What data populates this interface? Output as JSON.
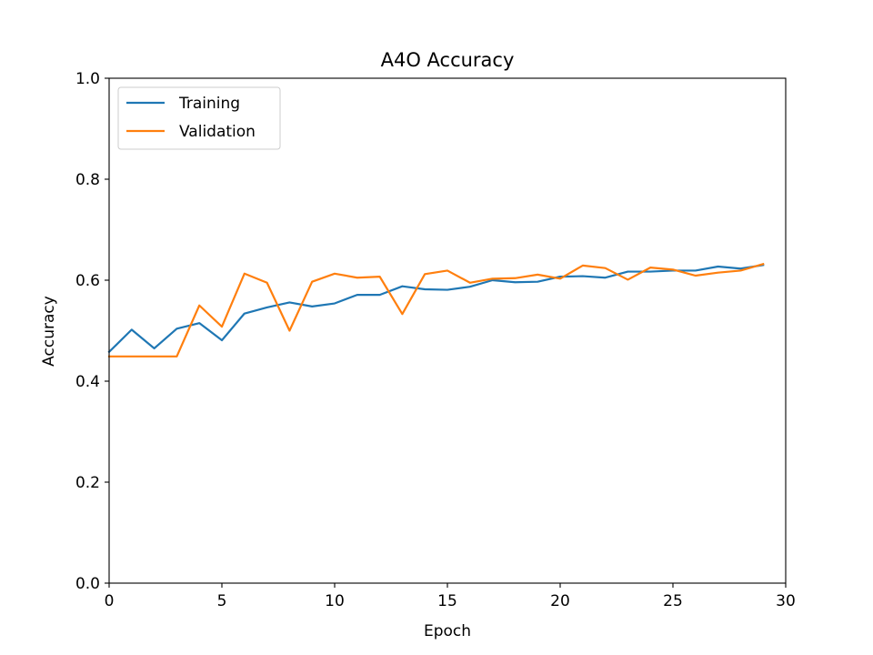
{
  "chart_data": {
    "type": "line",
    "title": "A4O Accuracy",
    "xlabel": "Epoch",
    "ylabel": "Accuracy",
    "xlim": [
      0,
      30
    ],
    "ylim": [
      0,
      1.0
    ],
    "xticks": [
      0,
      5,
      10,
      15,
      20,
      25,
      30
    ],
    "xtick_labels": [
      "0",
      "5",
      "10",
      "15",
      "20",
      "25",
      "30"
    ],
    "yticks": [
      0,
      0.2,
      0.4,
      0.6,
      0.8,
      1.0
    ],
    "ytick_labels": [
      "0.0",
      "0.2",
      "0.4",
      "0.6",
      "0.8",
      "1.0"
    ],
    "grid": false,
    "legend_position": "upper-left",
    "x": [
      0,
      1,
      2,
      3,
      4,
      5,
      6,
      7,
      8,
      9,
      10,
      11,
      12,
      13,
      14,
      15,
      16,
      17,
      18,
      19,
      20,
      21,
      22,
      23,
      24,
      25,
      26,
      27,
      28,
      29
    ],
    "series": [
      {
        "name": "Training",
        "color": "#1f77b4",
        "values": [
          0.458,
          0.502,
          0.465,
          0.504,
          0.515,
          0.481,
          0.534,
          0.546,
          0.556,
          0.548,
          0.554,
          0.571,
          0.571,
          0.588,
          0.582,
          0.581,
          0.587,
          0.6,
          0.596,
          0.597,
          0.607,
          0.608,
          0.605,
          0.617,
          0.617,
          0.619,
          0.619,
          0.627,
          0.623,
          0.63
        ]
      },
      {
        "name": "Validation",
        "color": "#ff7f0e",
        "values": [
          0.449,
          0.449,
          0.449,
          0.449,
          0.55,
          0.508,
          0.613,
          0.595,
          0.5,
          0.597,
          0.613,
          0.605,
          0.607,
          0.533,
          0.612,
          0.619,
          0.595,
          0.603,
          0.604,
          0.611,
          0.603,
          0.629,
          0.624,
          0.601,
          0.625,
          0.621,
          0.609,
          0.615,
          0.619,
          0.632
        ]
      }
    ]
  }
}
